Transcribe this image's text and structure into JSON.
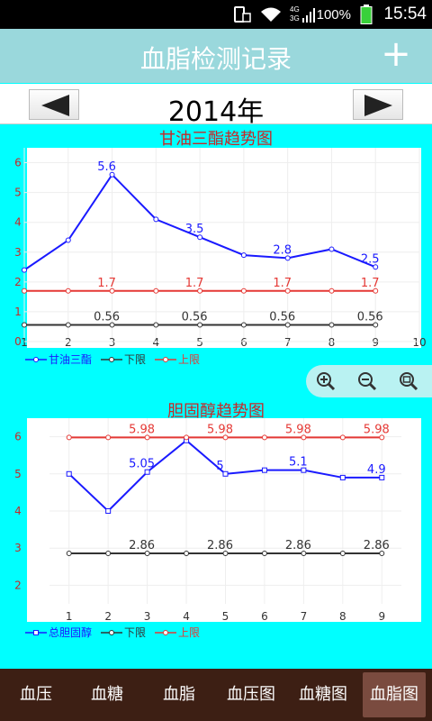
{
  "status_bar": {
    "battery": "100%",
    "time": "15:54",
    "network_top": "4G",
    "network_bottom": "3G"
  },
  "header": {
    "title": "血脂检测记录",
    "add_label": "+"
  },
  "year_nav": {
    "year": "2014年"
  },
  "colors": {
    "main_series": "#1a1aff",
    "lower": "#333333",
    "upper": "#e53935",
    "title": "#c62828",
    "background": "#00ffff"
  },
  "chart_data": [
    {
      "type": "line",
      "title": "甘油三酯趋势图",
      "x_ticks": [
        1,
        2,
        3,
        4,
        5,
        6,
        7,
        8,
        9,
        10
      ],
      "y_ticks": [
        0,
        1,
        2,
        3,
        4,
        5,
        6
      ],
      "xlim": [
        1,
        10
      ],
      "ylim": [
        0,
        6.5
      ],
      "grid": true,
      "legend_position": "bottom-left",
      "series": [
        {
          "name": "甘油三酯",
          "color": "#1a1aff",
          "marker": "circle",
          "x": [
            1,
            2,
            3,
            4,
            5,
            6,
            7,
            8,
            9
          ],
          "y": [
            2.4,
            3.4,
            5.6,
            4.1,
            3.5,
            2.9,
            2.8,
            3.1,
            2.5
          ],
          "labels": [
            null,
            null,
            "5.6",
            null,
            "3.5",
            null,
            "2.8",
            null,
            "2.5"
          ]
        },
        {
          "name": "下限",
          "color": "#333333",
          "marker": "circle",
          "x": [
            1,
            2,
            3,
            4,
            5,
            6,
            7,
            8,
            9
          ],
          "y": [
            0.56,
            0.56,
            0.56,
            0.56,
            0.56,
            0.56,
            0.56,
            0.56,
            0.56
          ],
          "labels": [
            null,
            null,
            "0.56",
            null,
            "0.56",
            null,
            "0.56",
            null,
            "0.56"
          ]
        },
        {
          "name": "上限",
          "color": "#e53935",
          "marker": "circle",
          "x": [
            1,
            2,
            3,
            4,
            5,
            6,
            7,
            8,
            9
          ],
          "y": [
            1.7,
            1.7,
            1.7,
            1.7,
            1.7,
            1.7,
            1.7,
            1.7,
            1.7
          ],
          "labels": [
            null,
            null,
            "1.7",
            null,
            "1.7",
            null,
            "1.7",
            null,
            "1.7"
          ]
        }
      ]
    },
    {
      "type": "line",
      "title": "胆固醇趋势图",
      "x_ticks": [
        1,
        2,
        3,
        4,
        5,
        6,
        7,
        8,
        9
      ],
      "y_ticks": [
        2,
        3,
        4,
        5,
        6
      ],
      "xlim": [
        0.5,
        9.5
      ],
      "ylim": [
        1.5,
        6.5
      ],
      "grid": true,
      "legend_position": "bottom-left",
      "series": [
        {
          "name": "总胆固醇",
          "color": "#1a1aff",
          "marker": "square",
          "x": [
            1,
            2,
            3,
            4,
            5,
            6,
            7,
            8,
            9
          ],
          "y": [
            5.0,
            4.0,
            5.05,
            5.9,
            5.0,
            5.1,
            5.1,
            4.9,
            4.9
          ],
          "labels": [
            null,
            null,
            "5.05",
            null,
            "5",
            null,
            "5.1",
            null,
            "4.9"
          ]
        },
        {
          "name": "下限",
          "color": "#333333",
          "marker": "circle",
          "x": [
            1,
            2,
            3,
            4,
            5,
            6,
            7,
            8,
            9
          ],
          "y": [
            2.86,
            2.86,
            2.86,
            2.86,
            2.86,
            2.86,
            2.86,
            2.86,
            2.86
          ],
          "labels": [
            null,
            null,
            "2.86",
            null,
            "2.86",
            null,
            "2.86",
            null,
            "2.86"
          ]
        },
        {
          "name": "上限",
          "color": "#e53935",
          "marker": "circle",
          "x": [
            1,
            2,
            3,
            4,
            5,
            6,
            7,
            8,
            9
          ],
          "y": [
            5.98,
            5.98,
            5.98,
            5.98,
            5.98,
            5.98,
            5.98,
            5.98,
            5.98
          ],
          "labels": [
            null,
            null,
            "5.98",
            null,
            "5.98",
            null,
            "5.98",
            null,
            "5.98"
          ]
        }
      ]
    }
  ],
  "zoom_controls": [
    {
      "name": "zoom-in-icon"
    },
    {
      "name": "zoom-out-icon"
    },
    {
      "name": "zoom-reset-icon"
    }
  ],
  "tabs": [
    {
      "label": "血压",
      "active": false
    },
    {
      "label": "血糖",
      "active": false
    },
    {
      "label": "血脂",
      "active": false
    },
    {
      "label": "血压图",
      "active": false
    },
    {
      "label": "血糖图",
      "active": false
    },
    {
      "label": "血脂图",
      "active": true
    }
  ]
}
